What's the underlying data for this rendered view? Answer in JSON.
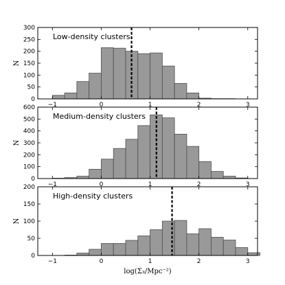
{
  "chart_data": [
    {
      "type": "bar",
      "title": "",
      "annotation": "Low-density clusters",
      "ylabel": "N",
      "xlabel": "",
      "xlim": [
        -1.3,
        3.2
      ],
      "ylim": [
        0,
        300
      ],
      "xticks": [
        "−1",
        "0",
        "1",
        "2",
        "3"
      ],
      "yticks": [
        "0",
        "50",
        "100",
        "150",
        "200",
        "250",
        "300"
      ],
      "bin_edges": [
        -1.0,
        -0.75,
        -0.5,
        -0.25,
        0.0,
        0.25,
        0.5,
        0.75,
        1.0,
        1.25,
        1.5,
        1.75,
        2.0,
        2.25,
        2.5,
        2.75,
        3.0
      ],
      "values": [
        15,
        25,
        73,
        108,
        215,
        213,
        200,
        190,
        193,
        138,
        65,
        25,
        3,
        1,
        1,
        0
      ],
      "median": 0.62
    },
    {
      "type": "bar",
      "title": "",
      "annotation": "Medium-density clusters",
      "ylabel": "N",
      "xlabel": "",
      "xlim": [
        -1.3,
        3.2
      ],
      "ylim": [
        0,
        600
      ],
      "xticks": [
        "−1",
        "0",
        "1",
        "2",
        "3"
      ],
      "yticks": [
        "0",
        "100",
        "200",
        "300",
        "400",
        "500",
        "600"
      ],
      "bin_edges": [
        -1.0,
        -0.75,
        -0.5,
        -0.25,
        0.0,
        0.25,
        0.5,
        0.75,
        1.0,
        1.25,
        1.5,
        1.75,
        2.0,
        2.25,
        2.5,
        2.75,
        3.0
      ],
      "values": [
        3,
        8,
        20,
        78,
        163,
        253,
        330,
        445,
        535,
        510,
        373,
        270,
        143,
        60,
        20,
        5
      ],
      "median": 1.13
    },
    {
      "type": "bar",
      "title": "",
      "annotation": "High-density clusters",
      "ylabel": "N",
      "xlabel": "log(Σ₃/Mpc⁻²)",
      "xlim": [
        -1.3,
        3.2
      ],
      "ylim": [
        0,
        200
      ],
      "xticks": [
        "−1",
        "0",
        "1",
        "2",
        "3"
      ],
      "yticks": [
        "0",
        "50",
        "100",
        "150",
        "200"
      ],
      "bin_edges": [
        -0.75,
        -0.5,
        -0.25,
        0.0,
        0.25,
        0.5,
        0.75,
        1.0,
        1.25,
        1.5,
        1.75,
        2.0,
        2.25,
        2.5,
        2.75,
        3.0,
        3.25
      ],
      "values": [
        1,
        7,
        18,
        35,
        35,
        44,
        57,
        75,
        100,
        102,
        63,
        78,
        53,
        45,
        23,
        8
      ],
      "median": 1.45
    }
  ]
}
